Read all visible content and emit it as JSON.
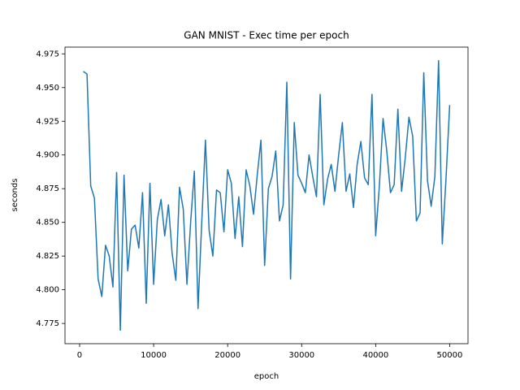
{
  "chart_data": {
    "type": "line",
    "title": "GAN MNIST - Exec time per epoch",
    "x_label": "epoch",
    "y_label": "seconds",
    "x": [
      500,
      1000,
      1500,
      2000,
      2500,
      3000,
      3500,
      4000,
      4500,
      5000,
      5500,
      6000,
      6500,
      7000,
      7500,
      8000,
      8500,
      9000,
      9500,
      10000,
      10500,
      11000,
      11500,
      12000,
      12500,
      13000,
      13500,
      14000,
      14500,
      15000,
      15500,
      16000,
      16500,
      17000,
      17500,
      18000,
      18500,
      19000,
      19500,
      20000,
      20500,
      21000,
      21500,
      22000,
      22500,
      23000,
      23500,
      24000,
      24500,
      25000,
      25500,
      26000,
      26500,
      27000,
      27500,
      28000,
      28500,
      29000,
      29500,
      30000,
      30500,
      31000,
      31500,
      32000,
      32500,
      33000,
      33500,
      34000,
      34500,
      35000,
      35500,
      36000,
      36500,
      37000,
      37500,
      38000,
      38500,
      39000,
      39500,
      40000,
      40500,
      41000,
      41500,
      42000,
      42500,
      43000,
      43500,
      44000,
      44500,
      45000,
      45500,
      46000,
      46500,
      47000,
      47500,
      48000,
      48500,
      49000,
      49500,
      50000
    ],
    "series": [
      {
        "color": "#1f77b4",
        "values": [
          4.962,
          4.96,
          4.877,
          4.868,
          4.808,
          4.795,
          4.833,
          4.825,
          4.802,
          4.887,
          4.77,
          4.885,
          4.814,
          4.845,
          4.848,
          4.831,
          4.872,
          4.79,
          4.879,
          4.804,
          4.852,
          4.867,
          4.84,
          4.863,
          4.827,
          4.807,
          4.876,
          4.86,
          4.804,
          4.85,
          4.888,
          4.786,
          4.85,
          4.911,
          4.844,
          4.825,
          4.874,
          4.872,
          4.843,
          4.889,
          4.879,
          4.838,
          4.869,
          4.832,
          4.889,
          4.877,
          4.856,
          4.885,
          4.911,
          4.818,
          4.875,
          4.884,
          4.903,
          4.851,
          4.863,
          4.954,
          4.808,
          4.924,
          4.885,
          4.879,
          4.872,
          4.9,
          4.884,
          4.869,
          4.945,
          4.863,
          4.882,
          4.893,
          4.873,
          4.9,
          4.924,
          4.873,
          4.886,
          4.861,
          4.893,
          4.91,
          4.883,
          4.878,
          4.945,
          4.84,
          4.877,
          4.927,
          4.903,
          4.872,
          4.878,
          4.934,
          4.873,
          4.898,
          4.928,
          4.914,
          4.851,
          4.857,
          4.961,
          4.881,
          4.862,
          4.884,
          4.97,
          4.834,
          4.882,
          4.937
        ]
      }
    ],
    "xlim": [
      -1975,
      52475
    ],
    "xticks": [
      0,
      10000,
      20000,
      30000,
      40000,
      50000
    ],
    "ylim": [
      4.76,
      4.98
    ],
    "yticks": [
      4.775,
      {
        "value": 4.8,
        "label": "4.800"
      },
      4.825,
      {
        "value": 4.85,
        "label": "4.850"
      },
      4.875,
      {
        "value": 4.9,
        "label": "4.900"
      },
      4.925,
      {
        "value": 4.95,
        "label": "4.950"
      },
      4.975
    ]
  }
}
